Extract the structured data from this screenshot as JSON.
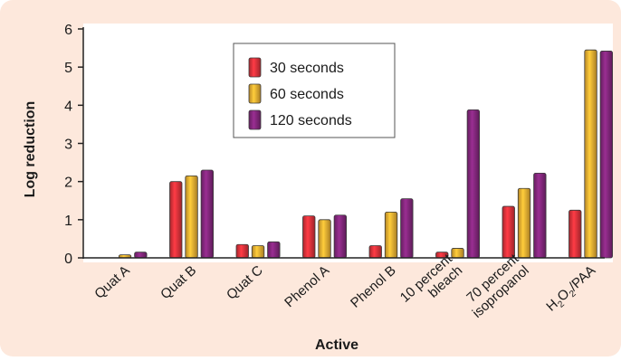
{
  "chart_data": {
    "type": "bar",
    "xlabel": "Active",
    "ylabel": "Log reduction",
    "ylim": [
      0,
      6
    ],
    "yticks": [
      0,
      1,
      2,
      3,
      4,
      5,
      6
    ],
    "legend_position": "top-center",
    "categories": [
      [
        "Quat A"
      ],
      [
        "Quat B"
      ],
      [
        "Quat C"
      ],
      [
        "Phenol A"
      ],
      [
        "Phenol B"
      ],
      [
        "10 percent",
        "bleach"
      ],
      [
        "70 percent",
        "isopropanol"
      ],
      [
        "H2O2/PAA"
      ]
    ],
    "series": [
      {
        "name": "30 seconds",
        "color": "#e0333c",
        "values": [
          0.0,
          2.0,
          0.35,
          1.1,
          0.32,
          0.15,
          1.35,
          1.25
        ]
      },
      {
        "name": "60 seconds",
        "color": "#f2b233",
        "values": [
          0.08,
          2.15,
          0.32,
          1.0,
          1.2,
          0.25,
          1.82,
          5.45
        ]
      },
      {
        "name": "120 seconds",
        "color": "#86287f",
        "values": [
          0.15,
          2.3,
          0.42,
          1.12,
          1.55,
          3.88,
          2.22,
          5.42
        ]
      }
    ]
  },
  "colors": {
    "panel_background": "#fde8dc",
    "plot_background": "#ffffff"
  }
}
